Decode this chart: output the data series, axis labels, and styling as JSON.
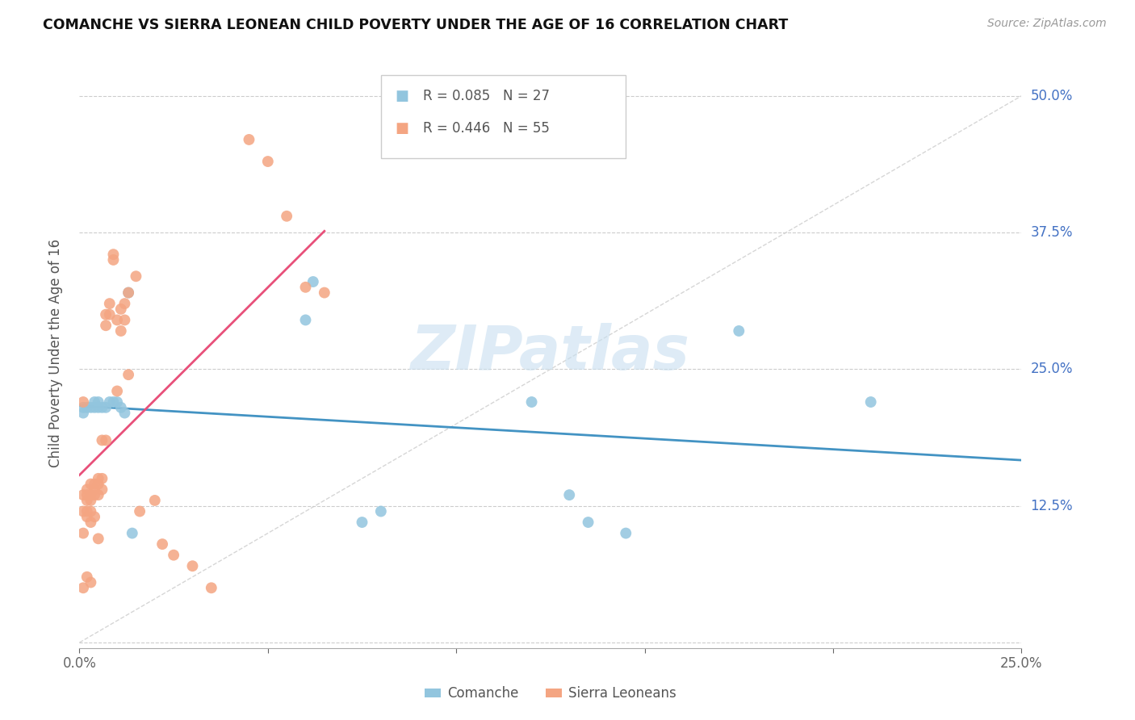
{
  "title": "COMANCHE VS SIERRA LEONEAN CHILD POVERTY UNDER THE AGE OF 16 CORRELATION CHART",
  "source": "Source: ZipAtlas.com",
  "ylabel": "Child Poverty Under the Age of 16",
  "xlim": [
    0,
    0.25
  ],
  "ylim": [
    -0.005,
    0.535
  ],
  "yticks": [
    0.0,
    0.125,
    0.25,
    0.375,
    0.5
  ],
  "ytick_labels": [
    "",
    "12.5%",
    "25.0%",
    "37.5%",
    "50.0%"
  ],
  "xticks": [
    0.0,
    0.05,
    0.1,
    0.15,
    0.2,
    0.25
  ],
  "xtick_labels": [
    "0.0%",
    "",
    "",
    "",
    "",
    "25.0%"
  ],
  "watermark": "ZIPatlas",
  "comanche_color": "#92c5de",
  "sierra_color": "#f4a582",
  "blue_line_color": "#4393c3",
  "pink_line_color": "#e8507a",
  "ref_line_color": "#bbbbbb",
  "comanche_x": [
    0.001,
    0.001,
    0.002,
    0.003,
    0.004,
    0.004,
    0.005,
    0.005,
    0.006,
    0.007,
    0.008,
    0.009,
    0.01,
    0.011,
    0.012,
    0.013,
    0.014,
    0.06,
    0.062,
    0.075,
    0.08,
    0.12,
    0.13,
    0.135,
    0.145,
    0.175,
    0.21
  ],
  "comanche_y": [
    0.215,
    0.21,
    0.215,
    0.215,
    0.215,
    0.22,
    0.22,
    0.215,
    0.215,
    0.215,
    0.22,
    0.22,
    0.22,
    0.215,
    0.21,
    0.32,
    0.1,
    0.295,
    0.33,
    0.11,
    0.12,
    0.22,
    0.135,
    0.11,
    0.1,
    0.285,
    0.22
  ],
  "sierra_x": [
    0.001,
    0.001,
    0.001,
    0.001,
    0.002,
    0.002,
    0.002,
    0.002,
    0.002,
    0.003,
    0.003,
    0.003,
    0.003,
    0.003,
    0.004,
    0.004,
    0.004,
    0.004,
    0.005,
    0.005,
    0.005,
    0.005,
    0.006,
    0.006,
    0.006,
    0.007,
    0.007,
    0.007,
    0.008,
    0.008,
    0.009,
    0.009,
    0.01,
    0.01,
    0.011,
    0.011,
    0.012,
    0.012,
    0.013,
    0.013,
    0.015,
    0.016,
    0.02,
    0.022,
    0.025,
    0.03,
    0.035,
    0.045,
    0.05,
    0.055,
    0.06,
    0.065,
    0.001,
    0.002,
    0.003
  ],
  "sierra_y": [
    0.22,
    0.135,
    0.12,
    0.1,
    0.14,
    0.135,
    0.13,
    0.12,
    0.115,
    0.145,
    0.135,
    0.13,
    0.12,
    0.11,
    0.145,
    0.14,
    0.135,
    0.115,
    0.15,
    0.145,
    0.135,
    0.095,
    0.185,
    0.15,
    0.14,
    0.3,
    0.29,
    0.185,
    0.31,
    0.3,
    0.355,
    0.35,
    0.295,
    0.23,
    0.305,
    0.285,
    0.31,
    0.295,
    0.32,
    0.245,
    0.335,
    0.12,
    0.13,
    0.09,
    0.08,
    0.07,
    0.05,
    0.46,
    0.44,
    0.39,
    0.325,
    0.32,
    0.05,
    0.06,
    0.055
  ]
}
